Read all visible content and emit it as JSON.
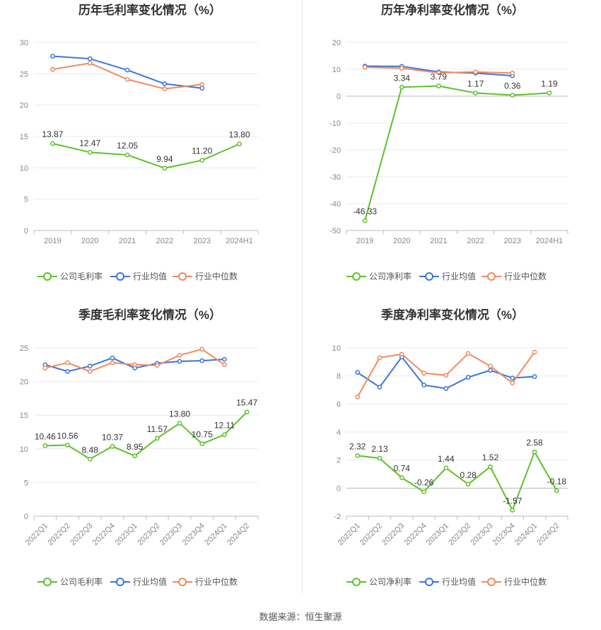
{
  "source": "数据来源：恒生聚源",
  "legend_labels": {
    "gross": "公司毛利率",
    "net": "公司净利率",
    "avg": "行业均值",
    "median": "行业中位数"
  },
  "colors": {
    "company": "#5cc22b",
    "avg": "#3a74e0",
    "median": "#f08a5d"
  },
  "chart_data": [
    {
      "type": "line",
      "title": "历年毛利率变化情况（%）",
      "categories": [
        "2019",
        "2020",
        "2021",
        "2022",
        "2023",
        "2024H1"
      ],
      "ylim": [
        0,
        30
      ],
      "yticks": [
        0,
        5,
        10,
        15,
        20,
        25,
        30
      ],
      "series": [
        {
          "name": "公司毛利率",
          "values": [
            13.87,
            12.47,
            12.05,
            9.94,
            11.2,
            13.8
          ],
          "labels": [
            "13.87",
            "12.47",
            "12.05",
            "9.94",
            "11.20",
            "13.80"
          ]
        },
        {
          "name": "行业均值",
          "values": [
            27.8,
            27.4,
            25.6,
            23.4,
            22.7,
            null
          ]
        },
        {
          "name": "行业中位数",
          "values": [
            25.7,
            26.7,
            24.1,
            22.6,
            23.3,
            null
          ]
        }
      ],
      "rotate_xticks": false
    },
    {
      "type": "line",
      "title": "历年净利率变化情况（%）",
      "categories": [
        "2019",
        "2020",
        "2021",
        "2022",
        "2023",
        "2024H1"
      ],
      "ylim": [
        -50,
        20
      ],
      "yticks": [
        -50,
        -40,
        -30,
        -20,
        -10,
        0,
        10,
        20
      ],
      "series": [
        {
          "name": "公司净利率",
          "values": [
            -46.33,
            3.34,
            3.79,
            1.17,
            0.36,
            1.19
          ],
          "labels": [
            "-46.33",
            "3.34",
            "3.79",
            "1.17",
            "0.36",
            "1.19"
          ]
        },
        {
          "name": "行业均值",
          "values": [
            11.2,
            11.1,
            9.0,
            8.6,
            7.6,
            null
          ]
        },
        {
          "name": "行业中位数",
          "values": [
            10.8,
            10.4,
            8.7,
            9.0,
            8.6,
            null
          ]
        }
      ],
      "rotate_xticks": false
    },
    {
      "type": "line",
      "title": "季度毛利率变化情况（%）",
      "categories": [
        "2022Q1",
        "2022Q2",
        "2022Q3",
        "2022Q4",
        "2023Q1",
        "2023Q2",
        "2023Q3",
        "2023Q4",
        "2024Q1",
        "2024Q2"
      ],
      "ylim": [
        0,
        25
      ],
      "yticks": [
        0,
        5,
        10,
        15,
        20,
        25
      ],
      "series": [
        {
          "name": "公司毛利率",
          "values": [
            10.46,
            10.56,
            8.48,
            10.37,
            8.95,
            11.57,
            13.8,
            10.75,
            12.11,
            15.47
          ],
          "labels": [
            "10.46",
            "10.56",
            "8.48",
            "10.37",
            "8.95",
            "11.57",
            "13.80",
            "10.75",
            "12.11",
            "15.47"
          ]
        },
        {
          "name": "行业均值",
          "values": [
            22.5,
            21.5,
            22.3,
            23.5,
            22.0,
            22.7,
            23.0,
            23.1,
            23.3,
            null
          ]
        },
        {
          "name": "行业中位数",
          "values": [
            22.0,
            22.8,
            21.5,
            22.8,
            22.5,
            22.4,
            23.9,
            24.8,
            22.5,
            null
          ]
        }
      ],
      "rotate_xticks": true
    },
    {
      "type": "line",
      "title": "季度净利率变化情况（%）",
      "categories": [
        "2022Q1",
        "2022Q2",
        "2022Q3",
        "2022Q4",
        "2023Q1",
        "2023Q2",
        "2023Q3",
        "2023Q4",
        "2024Q1",
        "2024Q2"
      ],
      "ylim": [
        -2,
        10
      ],
      "yticks": [
        -2,
        0,
        2,
        4,
        6,
        8,
        10
      ],
      "series": [
        {
          "name": "公司净利率",
          "values": [
            2.32,
            2.13,
            0.74,
            -0.26,
            1.44,
            0.28,
            1.52,
            -1.57,
            2.58,
            -0.18
          ],
          "labels": [
            "2.32",
            "2.13",
            "0.74",
            "-0.26",
            "1.44",
            "0.28",
            "1.52",
            "-1.57",
            "2.58",
            "-0.18"
          ]
        },
        {
          "name": "行业均值",
          "values": [
            8.25,
            7.2,
            9.35,
            7.35,
            7.1,
            7.9,
            8.4,
            7.85,
            7.95,
            null
          ]
        },
        {
          "name": "行业中位数",
          "values": [
            6.5,
            9.3,
            9.55,
            8.2,
            8.05,
            9.6,
            8.7,
            7.5,
            9.7,
            null
          ]
        }
      ],
      "rotate_xticks": true
    }
  ]
}
